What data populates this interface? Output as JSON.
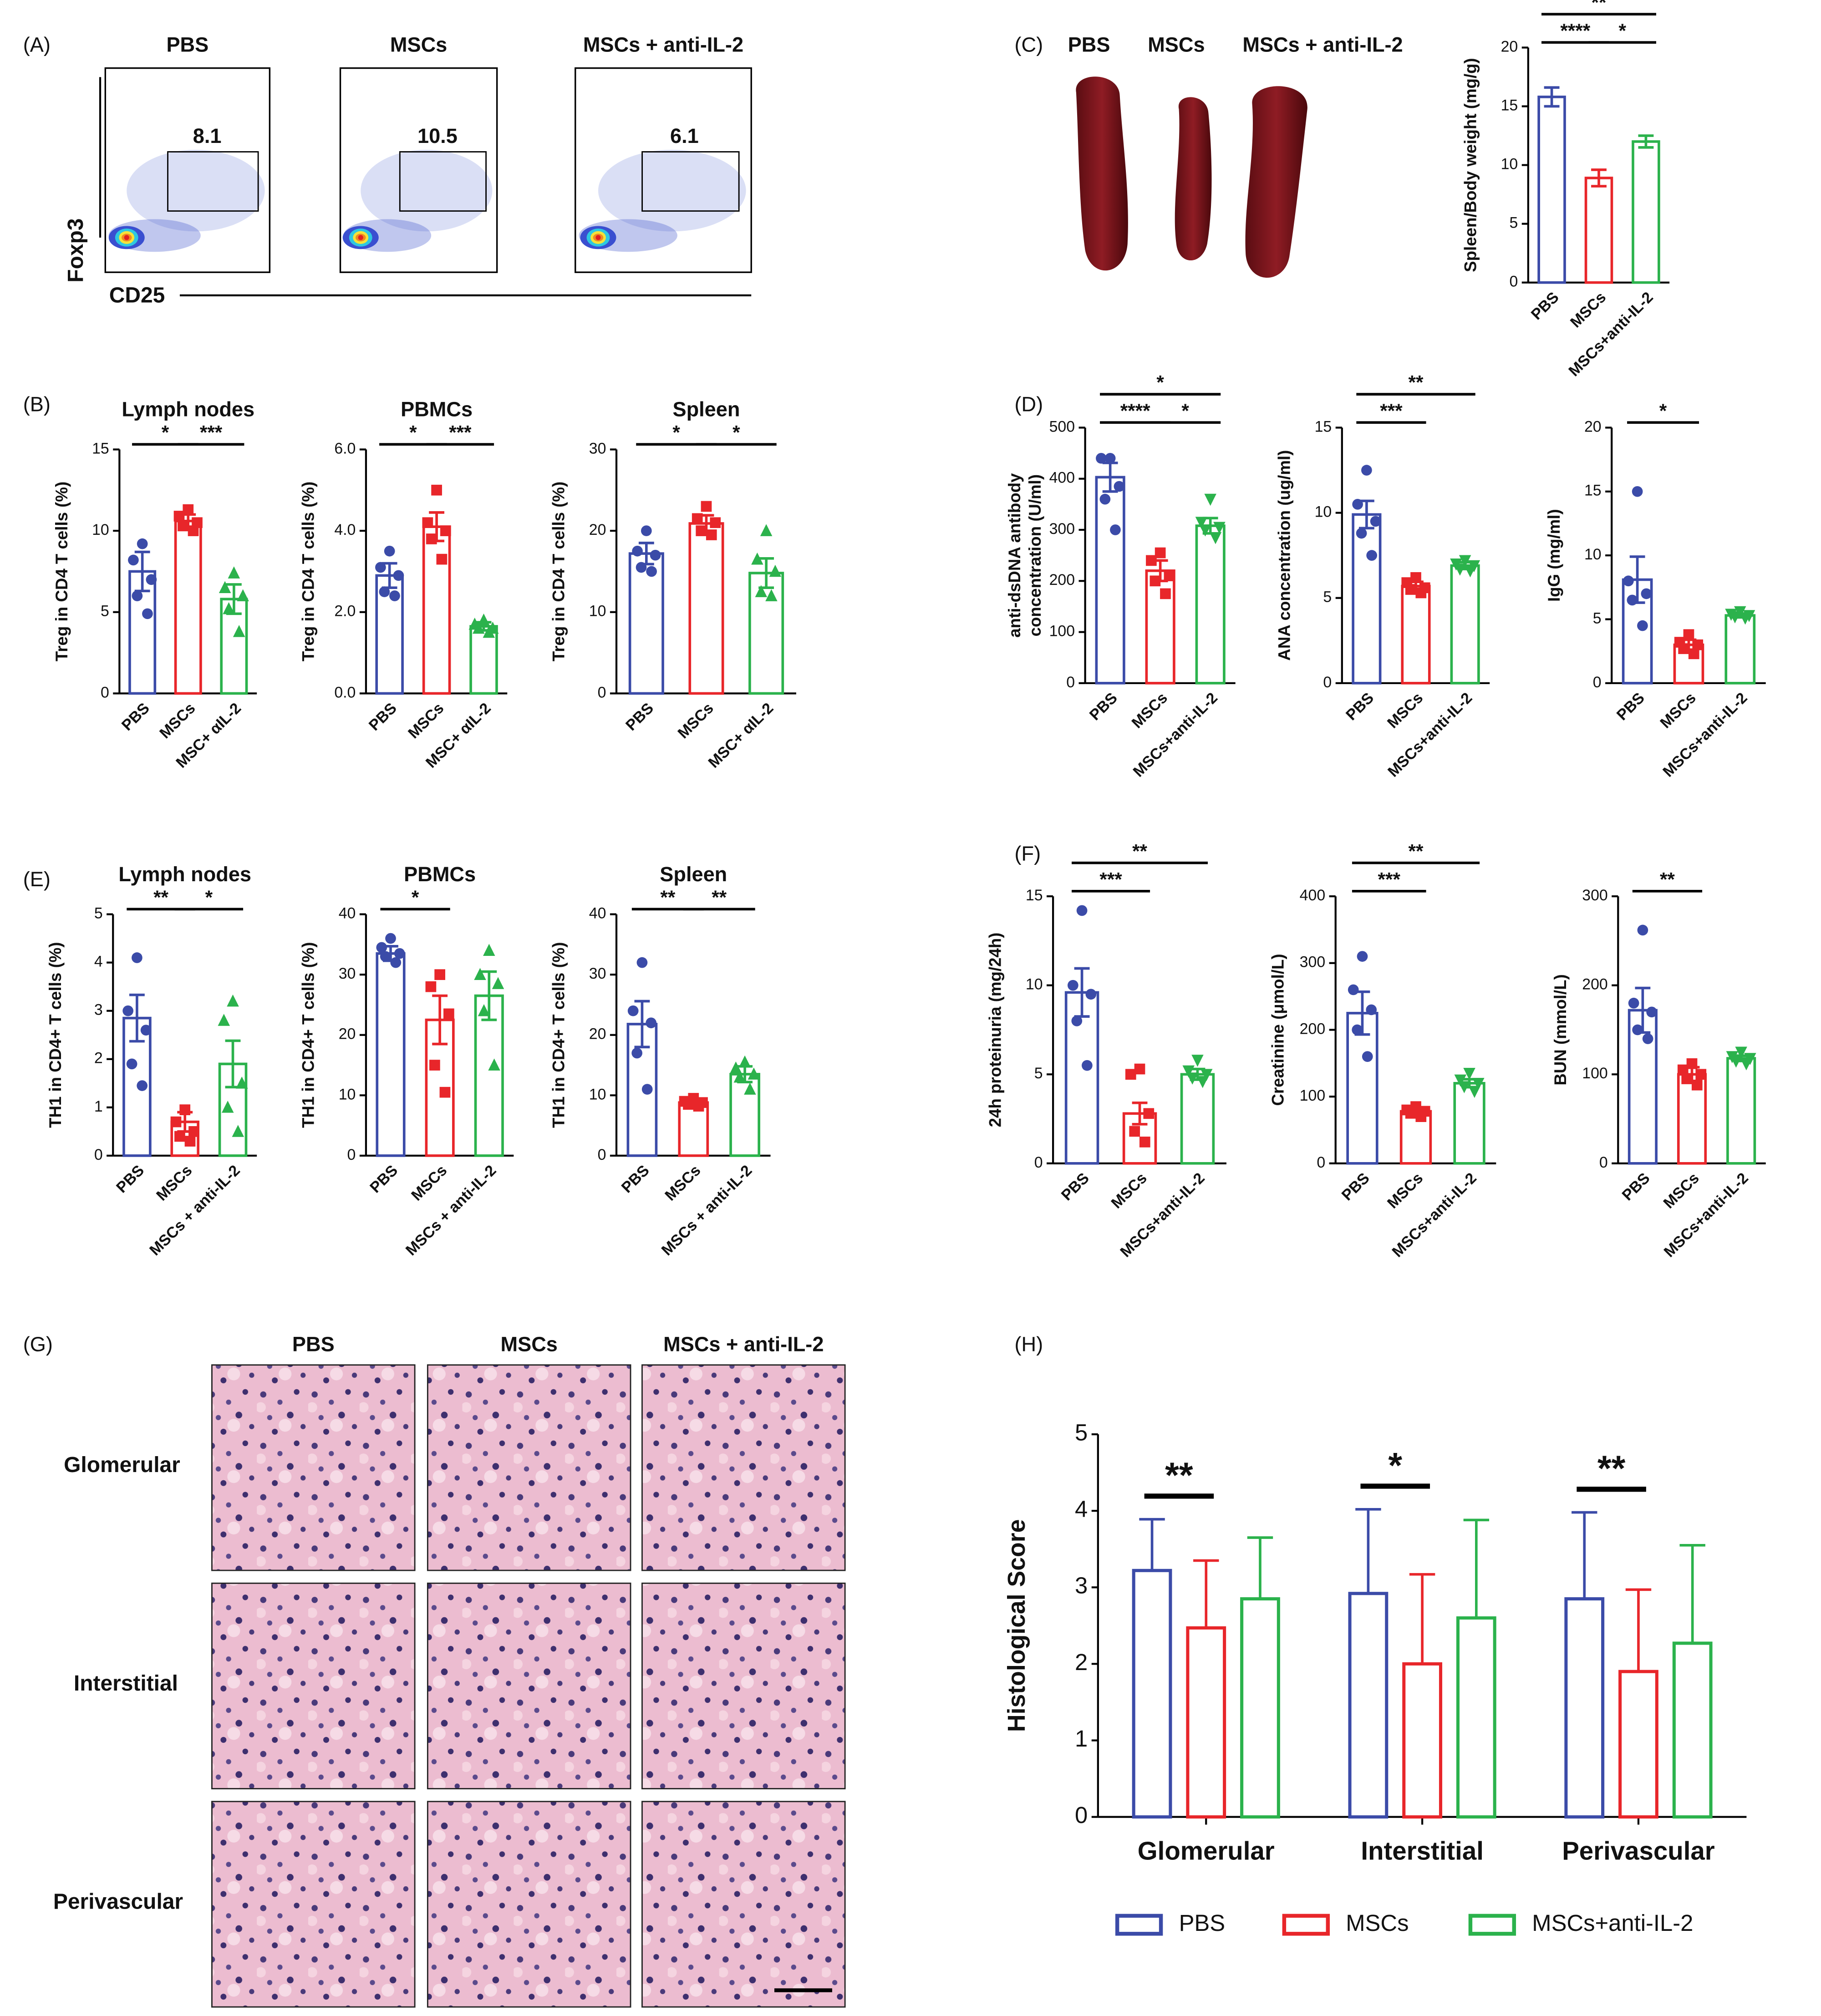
{
  "panels": [
    "(A)",
    "(B)",
    "(C)",
    "(D)",
    "(E)",
    "(F)",
    "(G)",
    "(H)"
  ],
  "spleen_photo": {
    "labels": [
      "PBS",
      "MSCs",
      "MSCs + anti-IL-2"
    ]
  },
  "histology": {
    "columns": [
      "PBS",
      "MSCs",
      "MSCs + anti-IL-2"
    ],
    "rows": [
      "Glomerular",
      "Interstitial",
      "Perivascular"
    ]
  },
  "chart_data": [
    {
      "type": "flow",
      "titles": [
        "PBS",
        "MSCs",
        "MSCs + anti-IL-2"
      ],
      "gate_values": [
        8.1,
        10.5,
        6.1
      ],
      "xlabel": "CD25",
      "ylabel": "Foxp3"
    },
    {
      "type": "dotbar",
      "ylabel": "Spleen/Body weight (mg/g)",
      "categories": [
        "PBS",
        "MSCs",
        "MSCs+anti-IL-2"
      ],
      "colors": [
        "#3b4ba8",
        "#e8262a",
        "#2bb24c"
      ],
      "values": [
        15.8,
        8.9,
        12.0
      ],
      "errors": [
        0.8,
        0.7,
        0.5
      ],
      "ylim": [
        0,
        20
      ],
      "yticks": [
        0,
        5,
        10,
        15,
        20
      ],
      "significance": [
        {
          "between": [
            "PBS",
            "MSCs+anti-IL-2"
          ],
          "label": "**"
        },
        {
          "between": [
            "PBS",
            "MSCs"
          ],
          "label": "****"
        },
        {
          "between": [
            "MSCs",
            "MSCs+anti-IL-2"
          ],
          "label": "*"
        }
      ]
    },
    {
      "type": "dotbar",
      "title": "Lymph nodes",
      "ylabel": "Treg in CD4 T cells (%)",
      "categories": [
        "PBS",
        "MSCs",
        "MSC+ αIL-2"
      ],
      "colors": [
        "#3b4ba8",
        "#e8262a",
        "#2bb24c"
      ],
      "markers": [
        "circle",
        "square",
        "triangle"
      ],
      "values": [
        7.5,
        10.6,
        5.8
      ],
      "errors": [
        1.2,
        0.4,
        0.9
      ],
      "points": [
        [
          9.2,
          8.2,
          7.0,
          6.0,
          4.9
        ],
        [
          11.3,
          10.9,
          10.5,
          10.3,
          10.0
        ],
        [
          7.4,
          6.5,
          6.0,
          5.2,
          3.8
        ]
      ],
      "ylim": [
        0,
        15
      ],
      "yticks": [
        0,
        5,
        10,
        15
      ],
      "significance": [
        {
          "between": [
            "PBS",
            "MSCs"
          ],
          "label": "*"
        },
        {
          "between": [
            "MSCs",
            "MSC+ αIL-2"
          ],
          "label": "***"
        }
      ]
    },
    {
      "type": "dotbar",
      "title": "PBMCs",
      "ylabel": "Treg in CD4 T cells (%)",
      "categories": [
        "PBS",
        "MSCs",
        "MSC+ αIL-2"
      ],
      "colors": [
        "#3b4ba8",
        "#e8262a",
        "#2bb24c"
      ],
      "markers": [
        "circle",
        "square",
        "triangle"
      ],
      "values": [
        2.9,
        4.1,
        1.65
      ],
      "errors": [
        0.3,
        0.35,
        0.1
      ],
      "points": [
        [
          3.5,
          3.1,
          2.9,
          2.5,
          2.4
        ],
        [
          5.0,
          4.2,
          4.0,
          3.8,
          3.3
        ],
        [
          1.8,
          1.7,
          1.6,
          1.6,
          1.5
        ]
      ],
      "ylim": [
        0,
        6
      ],
      "yticks": [
        {
          "value": 0,
          "label": "0.0"
        },
        {
          "value": 2,
          "label": "2.0"
        },
        {
          "value": 4,
          "label": "4.0"
        },
        {
          "value": 6,
          "label": "6.0"
        }
      ],
      "significance": [
        {
          "between": [
            "PBS",
            "MSCs"
          ],
          "label": "*"
        },
        {
          "between": [
            "MSCs",
            "MSC+ αIL-2"
          ],
          "label": "***"
        }
      ]
    },
    {
      "type": "dotbar",
      "title": "Spleen",
      "ylabel": "Treg in CD4 T cells (%)",
      "categories": [
        "PBS",
        "MSCs",
        "MSC+ αIL-2"
      ],
      "colors": [
        "#3b4ba8",
        "#e8262a",
        "#2bb24c"
      ],
      "markers": [
        "circle",
        "square",
        "triangle"
      ],
      "values": [
        17.2,
        20.9,
        14.8
      ],
      "errors": [
        1.3,
        1.0,
        1.8
      ],
      "points": [
        [
          20.0,
          17.5,
          17.0,
          15.5,
          15.0
        ],
        [
          23.0,
          21.5,
          21.0,
          20.0,
          19.5
        ],
        [
          20.0,
          16.5,
          15.0,
          12.5,
          12.0
        ]
      ],
      "ylim": [
        0,
        30
      ],
      "yticks": [
        0,
        10,
        20,
        30
      ],
      "significance": [
        {
          "between": [
            "PBS",
            "MSCs"
          ],
          "label": "*"
        },
        {
          "between": [
            "MSCs",
            "MSC+ αIL-2"
          ],
          "label": "*"
        }
      ]
    },
    {
      "type": "dotbar",
      "ylabel": [
        "anti-dsDNA antibody",
        "concentration (U/ml)"
      ],
      "categories": [
        "PBS",
        "MSCs",
        "MSCs+anti-IL-2"
      ],
      "colors": [
        "#3b4ba8",
        "#e8262a",
        "#2bb24c"
      ],
      "markers": [
        "circle",
        "square",
        "triangle-down"
      ],
      "values": [
        403,
        220,
        308
      ],
      "errors": [
        28,
        20,
        15
      ],
      "points": [
        [
          440,
          440,
          385,
          360,
          300
        ],
        [
          255,
          240,
          210,
          200,
          175
        ],
        [
          360,
          315,
          305,
          300,
          285
        ]
      ],
      "ylim": [
        0,
        500
      ],
      "yticks": [
        0,
        100,
        200,
        300,
        400,
        500
      ],
      "significance": [
        {
          "between": [
            "PBS",
            "MSCs+anti-IL-2"
          ],
          "label": "*"
        },
        {
          "between": [
            "PBS",
            "MSCs"
          ],
          "label": "****"
        },
        {
          "between": [
            "MSCs",
            "MSCs+anti-IL-2"
          ],
          "label": "*"
        }
      ]
    },
    {
      "type": "dotbar",
      "ylabel": "ANA concentration (ug/ml)",
      "categories": [
        "PBS",
        "MSCs",
        "MSCs+anti-IL-2"
      ],
      "colors": [
        "#3b4ba8",
        "#e8262a",
        "#2bb24c"
      ],
      "markers": [
        "circle",
        "square",
        "triangle-down"
      ],
      "values": [
        9.9,
        5.7,
        6.9
      ],
      "errors": [
        0.8,
        0.25,
        0.2
      ],
      "points": [
        [
          12.5,
          10.5,
          9.5,
          8.8,
          7.5
        ],
        [
          6.2,
          5.9,
          5.6,
          5.5,
          5.3
        ],
        [
          7.2,
          7.0,
          6.9,
          6.7,
          6.6
        ]
      ],
      "ylim": [
        0,
        15
      ],
      "yticks": [
        0,
        5,
        10,
        15
      ],
      "significance": [
        {
          "between": [
            "PBS",
            "MSCs+anti-IL-2"
          ],
          "label": "**"
        },
        {
          "between": [
            "PBS",
            "MSCs"
          ],
          "label": "***"
        }
      ]
    },
    {
      "type": "dotbar",
      "ylabel": "IgG (mg/ml)",
      "categories": [
        "PBS",
        "MSCs",
        "MSCs+anti-IL-2"
      ],
      "colors": [
        "#3b4ba8",
        "#e8262a",
        "#2bb24c"
      ],
      "markers": [
        "circle",
        "square",
        "triangle-down"
      ],
      "values": [
        8.1,
        3.0,
        5.3
      ],
      "errors": [
        1.8,
        0.4,
        0.15
      ],
      "points": [
        [
          15.0,
          8.0,
          7.0,
          6.5,
          4.5
        ],
        [
          3.8,
          3.2,
          3.0,
          2.7,
          2.3
        ],
        [
          5.6,
          5.4,
          5.3,
          5.2,
          5.1
        ]
      ],
      "ylim": [
        0,
        20
      ],
      "yticks": [
        0,
        5,
        10,
        15,
        20
      ],
      "significance": [
        {
          "between": [
            "PBS",
            "MSCs"
          ],
          "label": "*"
        }
      ]
    },
    {
      "type": "dotbar",
      "title": "Lymph nodes",
      "ylabel": "TH1 in CD4+ T cells (%)",
      "categories": [
        "PBS",
        "MSCs",
        "MSCs + anti-IL-2"
      ],
      "colors": [
        "#3b4ba8",
        "#e8262a",
        "#2bb24c"
      ],
      "markers": [
        "circle",
        "square",
        "triangle"
      ],
      "values": [
        2.85,
        0.7,
        1.9
      ],
      "errors": [
        0.48,
        0.2,
        0.48
      ],
      "points": [
        [
          4.1,
          3.0,
          2.6,
          1.9,
          1.45
        ],
        [
          0.95,
          0.7,
          0.5,
          0.4,
          0.3
        ],
        [
          3.2,
          2.8,
          1.5,
          1.0,
          0.5
        ]
      ],
      "ylim": [
        0,
        5
      ],
      "yticks": [
        0,
        1,
        2,
        3,
        4,
        5
      ],
      "significance": [
        {
          "between": [
            "PBS",
            "MSCs"
          ],
          "label": "**"
        },
        {
          "between": [
            "MSCs",
            "MSCs + anti-IL-2"
          ],
          "label": "*"
        }
      ]
    },
    {
      "type": "dotbar",
      "title": "PBMCs",
      "ylabel": "TH1 in CD4+ T cells (%)",
      "categories": [
        "PBS",
        "MSCs",
        "MSCs + anti-IL-2"
      ],
      "colors": [
        "#3b4ba8",
        "#e8262a",
        "#2bb24c"
      ],
      "markers": [
        "circle",
        "square",
        "triangle"
      ],
      "values": [
        33.5,
        22.5,
        26.5
      ],
      "errors": [
        1.2,
        4.0,
        4.0
      ],
      "points": [
        [
          36,
          34.5,
          33.5,
          33,
          32
        ],
        [
          30,
          28,
          23.5,
          15,
          10.5
        ],
        [
          34,
          30,
          28.5,
          24,
          15
        ]
      ],
      "ylim": [
        0,
        40
      ],
      "yticks": [
        0,
        10,
        20,
        30,
        40
      ],
      "significance": [
        {
          "between": [
            "PBS",
            "MSCs"
          ],
          "label": "*"
        }
      ]
    },
    {
      "type": "dotbar",
      "title": "Spleen",
      "ylabel": "TH1 in CD4+ T cells (%)",
      "categories": [
        "PBS",
        "MSCs",
        "MSCs + anti-IL-2"
      ],
      "colors": [
        "#3b4ba8",
        "#e8262a",
        "#2bb24c"
      ],
      "markers": [
        "circle",
        "square",
        "triangle"
      ],
      "values": [
        21.8,
        8.8,
        13.5
      ],
      "errors": [
        3.8,
        0.5,
        1.3
      ],
      "points": [
        [
          32,
          24,
          22,
          17,
          11
        ],
        [
          9.5,
          9.0,
          8.8,
          8.5,
          8.2
        ],
        [
          15.5,
          14.5,
          13.5,
          13,
          11
        ]
      ],
      "ylim": [
        0,
        40
      ],
      "yticks": [
        0,
        10,
        20,
        30,
        40
      ],
      "significance": [
        {
          "between": [
            "PBS",
            "MSCs"
          ],
          "label": "**"
        },
        {
          "between": [
            "MSCs",
            "MSCs + anti-IL-2"
          ],
          "label": "**"
        }
      ]
    },
    {
      "type": "dotbar",
      "ylabel": "24h proteinuria (mg/24h)",
      "categories": [
        "PBS",
        "MSCs",
        "MSCs+anti-IL-2"
      ],
      "colors": [
        "#3b4ba8",
        "#e8262a",
        "#2bb24c"
      ],
      "markers": [
        "circle",
        "square",
        "triangle-down"
      ],
      "values": [
        9.6,
        2.8,
        5.0
      ],
      "errors": [
        1.35,
        0.6,
        0.3
      ],
      "points": [
        [
          14.2,
          10,
          9.5,
          8,
          5.5
        ],
        [
          5.3,
          5,
          2.8,
          1.8,
          1.2
        ],
        [
          5.8,
          5.2,
          5,
          4.8,
          4.6
        ]
      ],
      "ylim": [
        0,
        15
      ],
      "yticks": [
        0,
        5,
        10,
        15
      ],
      "significance": [
        {
          "between": [
            "PBS",
            "MSCs+anti-IL-2"
          ],
          "label": "**"
        },
        {
          "between": [
            "PBS",
            "MSCs"
          ],
          "label": "***"
        }
      ]
    },
    {
      "type": "dotbar",
      "ylabel": "Creatinine (μmol/L)",
      "categories": [
        "PBS",
        "MSCs",
        "MSCs+anti-IL-2"
      ],
      "colors": [
        "#3b4ba8",
        "#e8262a",
        "#2bb24c"
      ],
      "markers": [
        "circle",
        "square",
        "triangle-down"
      ],
      "values": [
        225,
        78,
        120
      ],
      "errors": [
        32,
        5,
        6
      ],
      "points": [
        [
          310,
          260,
          230,
          200,
          160
        ],
        [
          85,
          80,
          78,
          75,
          70
        ],
        [
          135,
          125,
          120,
          115,
          108
        ]
      ],
      "ylim": [
        0,
        400
      ],
      "yticks": [
        0,
        100,
        200,
        300,
        400
      ],
      "significance": [
        {
          "between": [
            "PBS",
            "MSCs+anti-IL-2"
          ],
          "label": "**"
        },
        {
          "between": [
            "PBS",
            "MSCs"
          ],
          "label": "***"
        }
      ]
    },
    {
      "type": "dotbar",
      "ylabel": "BUN (mmol/L)",
      "categories": [
        "PBS",
        "MSCs",
        "MSCs+anti-IL-2"
      ],
      "colors": [
        "#3b4ba8",
        "#e8262a",
        "#2bb24c"
      ],
      "markers": [
        "circle",
        "square",
        "triangle-down"
      ],
      "values": [
        172,
        100,
        118
      ],
      "errors": [
        25,
        8,
        3
      ],
      "points": [
        [
          262,
          180,
          170,
          150,
          140
        ],
        [
          112,
          105,
          100,
          95,
          88
        ],
        [
          125,
          120,
          118,
          115,
          112
        ]
      ],
      "ylim": [
        0,
        300
      ],
      "yticks": [
        0,
        100,
        200,
        300
      ],
      "significance": [
        {
          "between": [
            "PBS",
            "MSCs"
          ],
          "label": "**"
        }
      ]
    },
    {
      "type": "grouped",
      "ylabel": "Histological Score",
      "categories": [
        "Glomerular",
        "Interstitial",
        "Perivascular"
      ],
      "series": [
        {
          "name": "PBS",
          "color": "#3b4ba8",
          "values": [
            3.22,
            2.92,
            2.85
          ],
          "errors": [
            0.67,
            1.1,
            1.13
          ]
        },
        {
          "name": "MSCs",
          "color": "#e8262a",
          "values": [
            2.47,
            2.0,
            1.9
          ],
          "errors": [
            0.88,
            1.17,
            1.07
          ]
        },
        {
          "name": "MSCs+anti-IL-2",
          "color": "#2bb24c",
          "values": [
            2.85,
            2.6,
            2.27
          ],
          "errors": [
            0.8,
            1.28,
            1.28
          ]
        }
      ],
      "ylim": [
        0,
        5
      ],
      "yticks": [
        0,
        1,
        2,
        3,
        4,
        5
      ],
      "significance": [
        {
          "category": "Glomerular",
          "label": "**"
        },
        {
          "category": "Interstitial",
          "label": "*"
        },
        {
          "category": "Perivascular",
          "label": "**"
        }
      ],
      "legend": "bottom"
    }
  ]
}
